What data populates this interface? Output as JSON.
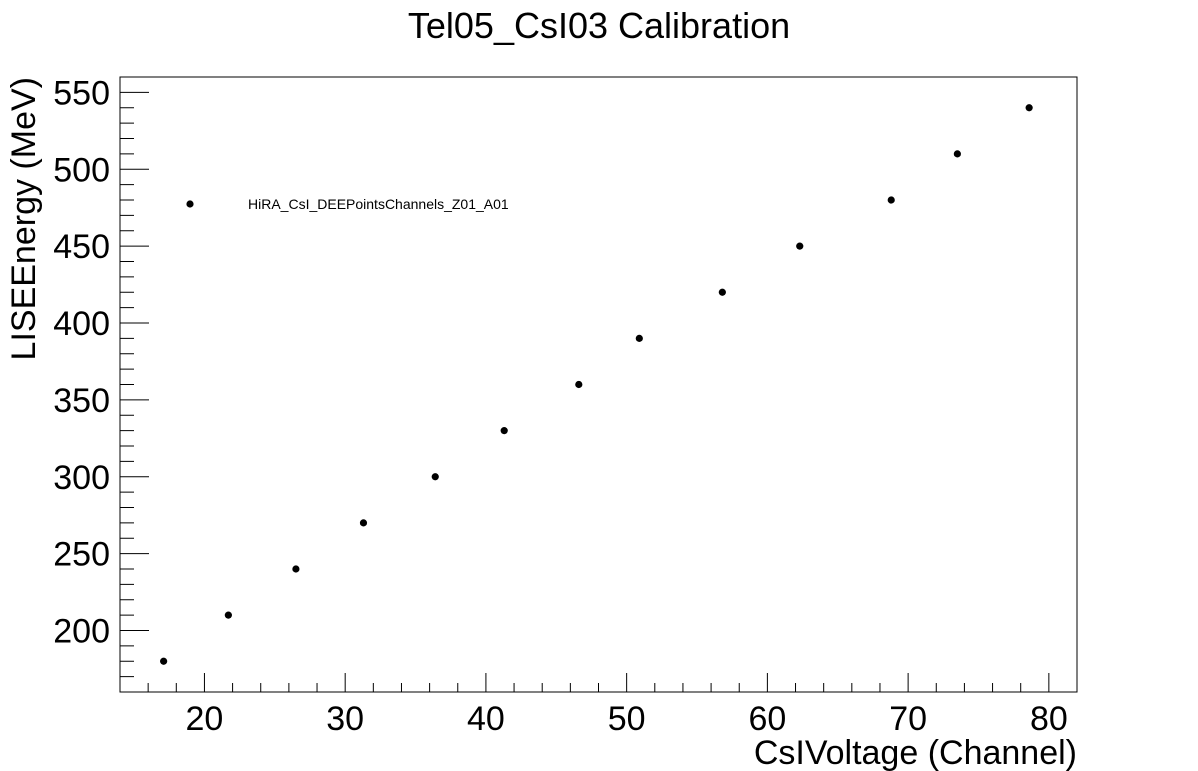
{
  "chart_data": {
    "type": "scatter",
    "title": "Tel05_CsI03 Calibration",
    "xlabel": "CsIVoltage (Channel)",
    "ylabel": "LISEEnergy (MeV)",
    "xlim": [
      14,
      82
    ],
    "ylim": [
      160,
      560
    ],
    "xticks": [
      20,
      30,
      40,
      50,
      60,
      70,
      80
    ],
    "yticks": [
      200,
      250,
      300,
      350,
      400,
      450,
      500,
      550
    ],
    "legend_position": "upper-left",
    "grid": false,
    "series": [
      {
        "name": "HiRA_CsI_DEEPointsChannels_Z01_A01",
        "color": "#000000",
        "x": [
          17.1,
          21.7,
          26.5,
          31.3,
          36.4,
          41.3,
          46.6,
          50.9,
          56.8,
          62.3,
          68.8,
          73.5,
          78.6
        ],
        "y": [
          180,
          210,
          240,
          270,
          300,
          330,
          360,
          390,
          420,
          450,
          480,
          510,
          540
        ]
      }
    ]
  }
}
